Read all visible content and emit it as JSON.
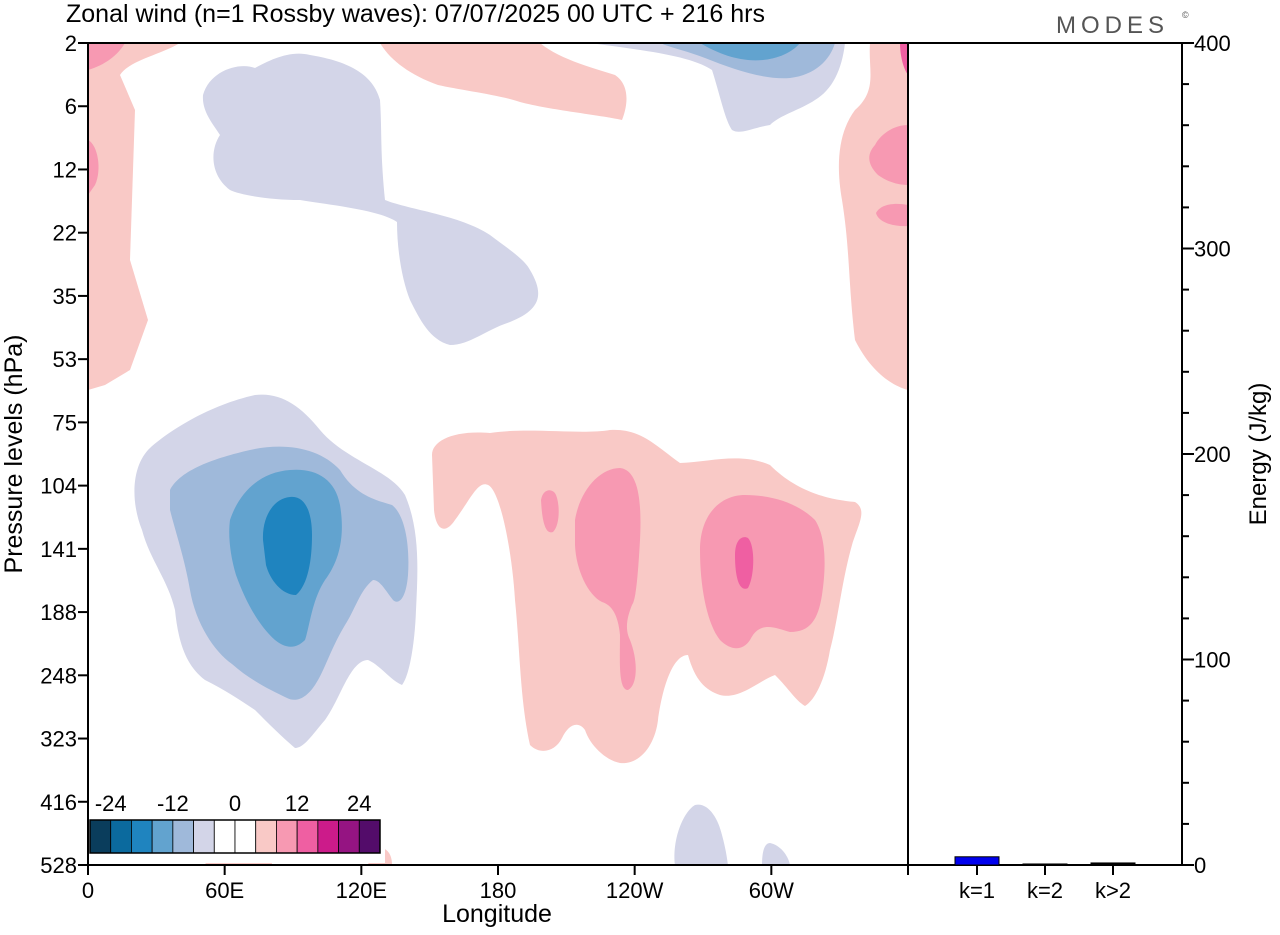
{
  "title": "Zonal wind (n=1 Rossby waves):  07/07/2025  00 UTC  + 216 hrs",
  "brand": "MODES",
  "brand_mark": "©",
  "chart_data": [
    {
      "type": "heatmap",
      "xlabel": "Longitude",
      "ylabel": "Pressure levels (hPa)",
      "x_ticks": [
        "0",
        "60E",
        "120E",
        "180",
        "120W",
        "60W"
      ],
      "y_ticks": [
        "2",
        "6",
        "12",
        "22",
        "35",
        "53",
        "75",
        "104",
        "141",
        "188",
        "248",
        "323",
        "416",
        "528"
      ],
      "colorbar": {
        "tick_labels": [
          "-24",
          "-12",
          "0",
          "12",
          "24"
        ],
        "colors": [
          "#0a3d5c",
          "#0b6a9e",
          "#1f84bf",
          "#62a3cf",
          "#9fb9da",
          "#d3d5e8",
          "#ffffff",
          "#ffffff",
          "#f9c9c6",
          "#f799b2",
          "#ef5fa2",
          "#cc1b8a",
          "#951482",
          "#530c6a"
        ]
      },
      "levels_colors": {
        "neg1": "#d3d5e8",
        "neg2": "#9fb9da",
        "neg3": "#62a3cf",
        "neg4": "#1f84bf",
        "pos1": "#f9c9c6",
        "pos2": "#f799b2",
        "pos3": "#ef5fa2"
      }
    },
    {
      "type": "bar",
      "categories": [
        "k=1",
        "k=2",
        "k>2"
      ],
      "values": [
        4,
        0.5,
        1
      ],
      "ylabel": "Energy (J/kg)",
      "ylim": [
        0,
        400
      ],
      "y_ticks": [
        "0",
        "100",
        "200",
        "300",
        "400"
      ],
      "bar_colors": [
        "#0000ee",
        "#000000",
        "#000000"
      ]
    }
  ]
}
